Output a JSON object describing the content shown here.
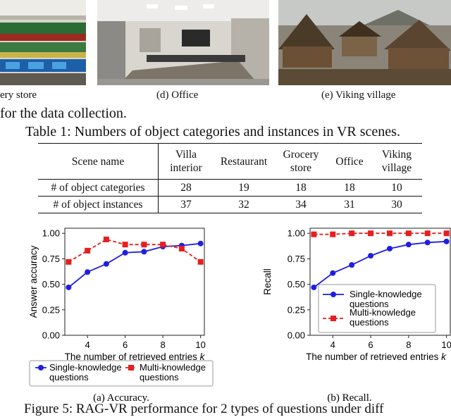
{
  "figure_captions": {
    "c": "ery store",
    "d": "(d) Office",
    "e": "(e) Viking village"
  },
  "body_fragment": "for the data collection.",
  "table": {
    "caption": "Table 1: Numbers of object categories and instances in VR scenes.",
    "header": [
      "Scene name",
      "Villa interior",
      "Restaurant",
      "Grocery store",
      "Office",
      "Viking village"
    ],
    "rows": [
      {
        "label": "# of object categories",
        "values": [
          "28",
          "19",
          "18",
          "18",
          "10"
        ]
      },
      {
        "label": "# of object instances",
        "values": [
          "37",
          "32",
          "34",
          "31",
          "30"
        ]
      }
    ]
  },
  "chart_data": [
    {
      "type": "line",
      "xlabel": "The number of retrieved entries k",
      "ylabel": "Answer accuracy",
      "x": [
        3,
        4,
        5,
        6,
        7,
        8,
        9,
        10
      ],
      "xticks": [
        4,
        6,
        8,
        10
      ],
      "yticks": [
        "0.00",
        "0.25",
        "0.50",
        "0.75",
        "1.00"
      ],
      "xlim": [
        2.8,
        10.2
      ],
      "ylim": [
        0,
        1.05
      ],
      "grid": false,
      "legend": "below",
      "series": [
        {
          "name": "Single-knowledge questions",
          "color": "#1f1fe0",
          "marker": "circle",
          "dash": false,
          "values": [
            0.47,
            0.62,
            0.7,
            0.81,
            0.82,
            0.87,
            0.88,
            0.9
          ]
        },
        {
          "name": "Multi-knowledge questions",
          "color": "#e51f1f",
          "marker": "square",
          "dash": true,
          "values": [
            0.72,
            0.83,
            0.94,
            0.89,
            0.89,
            0.89,
            0.85,
            0.72
          ]
        }
      ],
      "caption": "(a) Accuracy."
    },
    {
      "type": "line",
      "xlabel": "The number of retrieved entries k",
      "ylabel": "Recall",
      "x": [
        3,
        4,
        5,
        6,
        7,
        8,
        9,
        10
      ],
      "xticks": [
        4,
        6,
        8,
        10
      ],
      "yticks": [
        "0.00",
        "0.25",
        "0.50",
        "0.75",
        "1.00"
      ],
      "xlim": [
        2.8,
        10.2
      ],
      "ylim": [
        0,
        1.05
      ],
      "grid": false,
      "legend": "inside-lower-right",
      "series": [
        {
          "name": "Single-knowledge questions",
          "color": "#1f1fe0",
          "marker": "circle",
          "dash": false,
          "values": [
            0.47,
            0.61,
            0.69,
            0.78,
            0.85,
            0.89,
            0.91,
            0.92
          ]
        },
        {
          "name": "Multi-knowledge questions",
          "color": "#e51f1f",
          "marker": "square",
          "dash": true,
          "values": [
            0.99,
            0.99,
            1.0,
            1.0,
            1.0,
            1.0,
            1.0,
            1.0
          ]
        }
      ],
      "caption": "(b) Recall."
    }
  ],
  "figure_caption_bottom": "Figure 5: RAG-VR performance for 2 types of questions under diff"
}
